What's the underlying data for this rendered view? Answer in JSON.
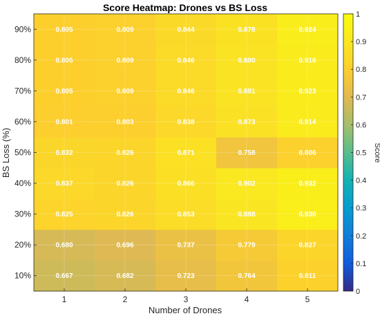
{
  "chart_data": {
    "type": "heatmap",
    "title": "Score Heatmap: Drones vs BS Loss",
    "xlabel": "Number of Drones",
    "ylabel": "BS Loss (%)",
    "x": [
      "1",
      "2",
      "3",
      "4",
      "5"
    ],
    "y": [
      "10%",
      "20%",
      "30%",
      "40%",
      "50%",
      "60%",
      "70%",
      "80%",
      "90%"
    ],
    "values": [
      [
        0.667,
        0.682,
        0.723,
        0.764,
        0.811
      ],
      [
        0.68,
        0.696,
        0.737,
        0.779,
        0.827
      ],
      [
        0.825,
        0.826,
        0.853,
        0.888,
        0.93
      ],
      [
        0.837,
        0.826,
        0.866,
        0.902,
        0.932
      ],
      [
        0.832,
        0.826,
        0.871,
        0.758,
        0.806
      ],
      [
        0.801,
        0.803,
        0.838,
        0.873,
        0.914
      ],
      [
        0.805,
        0.809,
        0.846,
        0.881,
        0.923
      ],
      [
        0.805,
        0.809,
        0.846,
        0.88,
        0.916
      ],
      [
        0.805,
        0.809,
        0.844,
        0.878,
        0.924
      ]
    ],
    "colorbar": {
      "label": "Score",
      "range": [
        0,
        1
      ],
      "ticks": [
        "0",
        "0.1",
        "0.2",
        "0.3",
        "0.4",
        "0.5",
        "0.6",
        "0.7",
        "0.8",
        "0.9",
        "1"
      ]
    },
    "colormap": "parula",
    "grid": true
  }
}
